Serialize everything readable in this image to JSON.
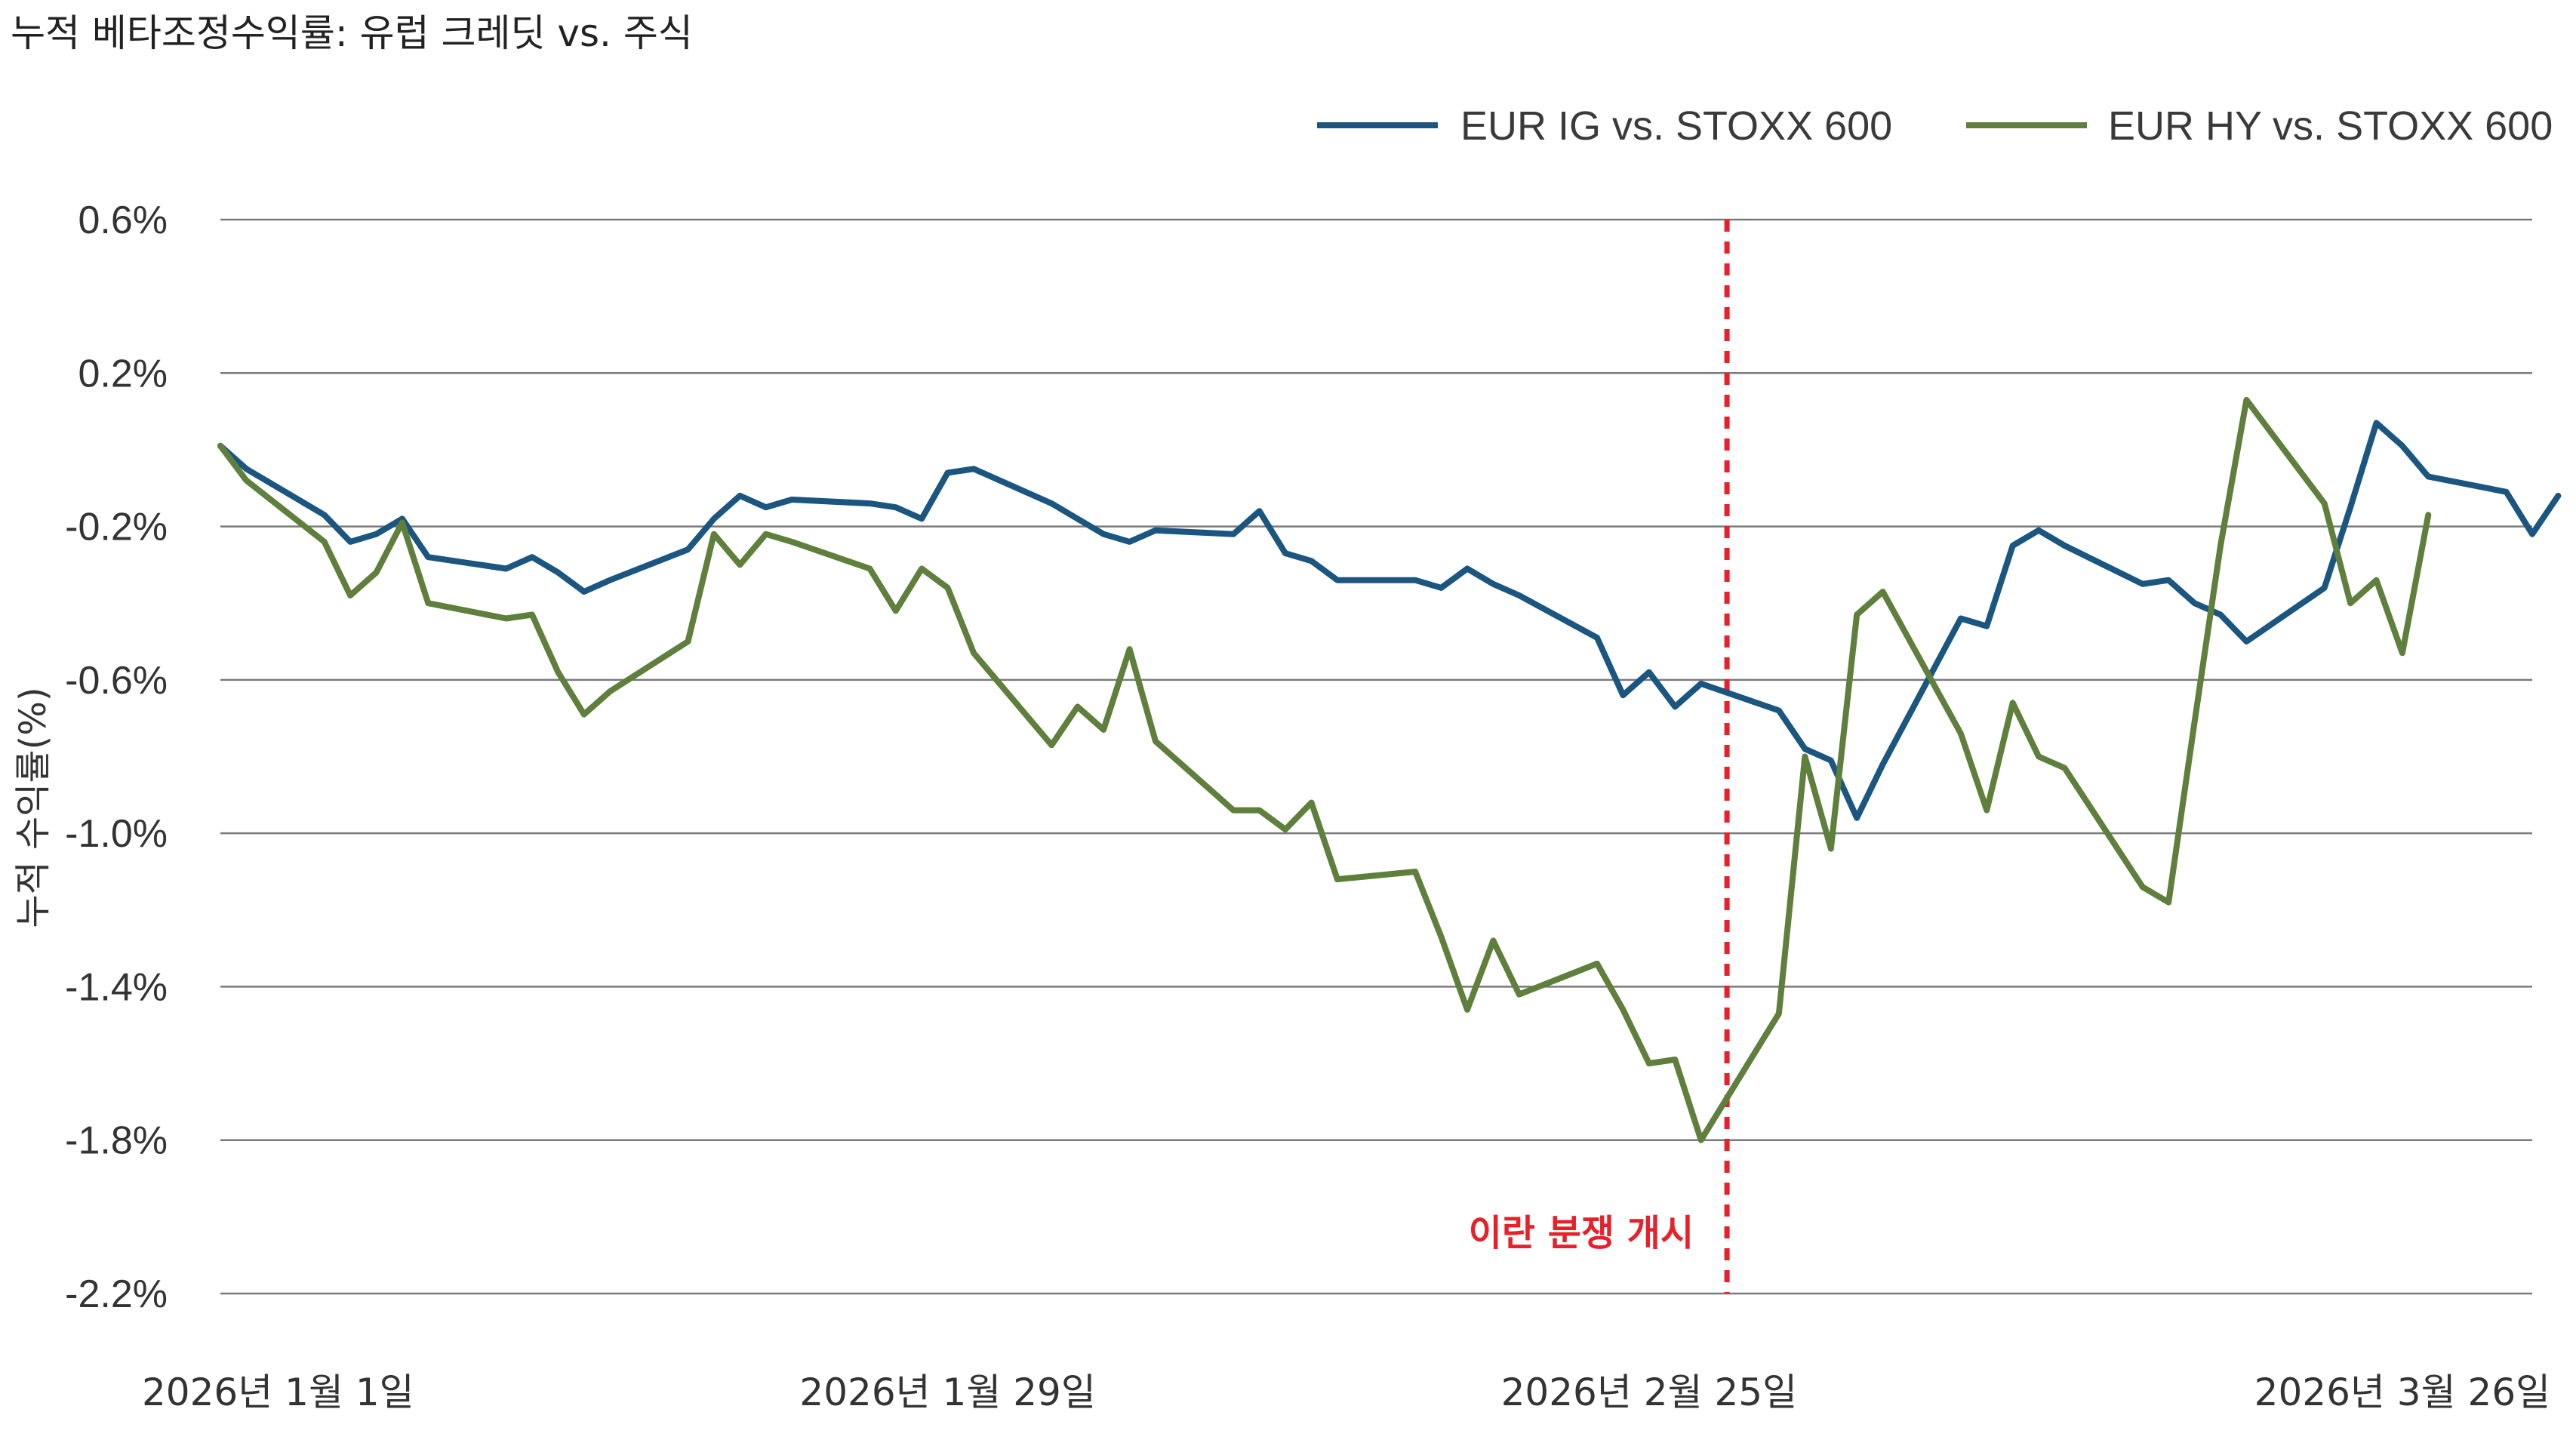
{
  "title": "누적 베타조정수익률: 유럽 크레딧 vs. 주식",
  "chart_data": {
    "type": "line",
    "title": "누적 베타조정수익률: 유럽 크레딧 vs. 주식",
    "xlabel": "",
    "ylabel": "누적 수익률(%)",
    "ylim": [
      -2.2,
      0.6
    ],
    "yticks": [
      0.6,
      0.2,
      -0.2,
      -0.6,
      -1.0,
      -1.4,
      -1.8,
      -2.2
    ],
    "ytick_labels": [
      "0.6%",
      "0.2%",
      "-0.2%",
      "-0.6%",
      "-1.0%",
      "-1.4%",
      "-1.8%",
      "-2.2%"
    ],
    "x_range": [
      "2026-01-01",
      "2026-03-31"
    ],
    "xticks": [
      {
        "date": "2026-01-01",
        "label": "2026년 1월 1일"
      },
      {
        "date": "2026-01-29",
        "label": "2026년 1월 29일"
      },
      {
        "date": "2026-02-25",
        "label": "2026년 2월 25일"
      },
      {
        "date": "2026-03-26",
        "label": "2026년 3월 26일"
      }
    ],
    "grid": true,
    "legend_position": "top-right",
    "annotations": [
      {
        "date": "2026-02-28",
        "label": "이란 분쟁 개시",
        "color": "#e8202a",
        "style": "dashed-vertical"
      }
    ],
    "series": [
      {
        "name": "EUR IG vs. STOXX 600",
        "color": "#1b5680",
        "points": [
          [
            "2026-01-01",
            0.01
          ],
          [
            "2026-01-02",
            -0.05
          ],
          [
            "2026-01-05",
            -0.17
          ],
          [
            "2026-01-06",
            -0.24
          ],
          [
            "2026-01-07",
            -0.22
          ],
          [
            "2026-01-08",
            -0.18
          ],
          [
            "2026-01-09",
            -0.28
          ],
          [
            "2026-01-12",
            -0.31
          ],
          [
            "2026-01-13",
            -0.28
          ],
          [
            "2026-01-14",
            -0.32
          ],
          [
            "2026-01-15",
            -0.37
          ],
          [
            "2026-01-16",
            -0.34
          ],
          [
            "2026-01-19",
            -0.26
          ],
          [
            "2026-01-20",
            -0.18
          ],
          [
            "2026-01-21",
            -0.12
          ],
          [
            "2026-01-22",
            -0.15
          ],
          [
            "2026-01-23",
            -0.13
          ],
          [
            "2026-01-26",
            -0.14
          ],
          [
            "2026-01-27",
            -0.15
          ],
          [
            "2026-01-28",
            -0.18
          ],
          [
            "2026-01-29",
            -0.06
          ],
          [
            "2026-01-30",
            -0.05
          ],
          [
            "2026-02-02",
            -0.14
          ],
          [
            "2026-02-03",
            -0.18
          ],
          [
            "2026-02-04",
            -0.22
          ],
          [
            "2026-02-05",
            -0.24
          ],
          [
            "2026-02-06",
            -0.21
          ],
          [
            "2026-02-09",
            -0.22
          ],
          [
            "2026-02-10",
            -0.16
          ],
          [
            "2026-02-11",
            -0.27
          ],
          [
            "2026-02-12",
            -0.29
          ],
          [
            "2026-02-13",
            -0.34
          ],
          [
            "2026-02-16",
            -0.34
          ],
          [
            "2026-02-17",
            -0.36
          ],
          [
            "2026-02-18",
            -0.31
          ],
          [
            "2026-02-19",
            -0.35
          ],
          [
            "2026-02-20",
            -0.38
          ],
          [
            "2026-02-23",
            -0.49
          ],
          [
            "2026-02-24",
            -0.64
          ],
          [
            "2026-02-25",
            -0.58
          ],
          [
            "2026-02-26",
            -0.67
          ],
          [
            "2026-02-27",
            -0.61
          ],
          [
            "2026-03-02",
            -0.68
          ],
          [
            "2026-03-03",
            -0.78
          ],
          [
            "2026-03-04",
            -0.81
          ],
          [
            "2026-03-05",
            -0.96
          ],
          [
            "2026-03-06",
            -0.82
          ],
          [
            "2026-03-09",
            -0.44
          ],
          [
            "2026-03-10",
            -0.46
          ],
          [
            "2026-03-11",
            -0.25
          ],
          [
            "2026-03-12",
            -0.21
          ],
          [
            "2026-03-13",
            -0.25
          ],
          [
            "2026-03-16",
            -0.35
          ],
          [
            "2026-03-17",
            -0.34
          ],
          [
            "2026-03-18",
            -0.4
          ],
          [
            "2026-03-19",
            -0.43
          ],
          [
            "2026-03-20",
            -0.5
          ],
          [
            "2026-03-23",
            -0.36
          ],
          [
            "2026-03-24",
            -0.15
          ],
          [
            "2026-03-25",
            0.07
          ],
          [
            "2026-03-26",
            0.01
          ],
          [
            "2026-03-27",
            -0.07
          ],
          [
            "2026-03-30",
            -0.11
          ],
          [
            "2026-03-31",
            -0.22
          ],
          [
            "2026-04-01",
            -0.12
          ]
        ]
      },
      {
        "name": "EUR HY vs. STOXX 600",
        "color": "#5f7f3c",
        "points": [
          [
            "2026-01-01",
            0.01
          ],
          [
            "2026-01-02",
            -0.08
          ],
          [
            "2026-01-05",
            -0.24
          ],
          [
            "2026-01-06",
            -0.38
          ],
          [
            "2026-01-07",
            -0.32
          ],
          [
            "2026-01-08",
            -0.19
          ],
          [
            "2026-01-09",
            -0.4
          ],
          [
            "2026-01-12",
            -0.44
          ],
          [
            "2026-01-13",
            -0.43
          ],
          [
            "2026-01-14",
            -0.58
          ],
          [
            "2026-01-15",
            -0.69
          ],
          [
            "2026-01-16",
            -0.63
          ],
          [
            "2026-01-19",
            -0.5
          ],
          [
            "2026-01-20",
            -0.22
          ],
          [
            "2026-01-21",
            -0.3
          ],
          [
            "2026-01-22",
            -0.22
          ],
          [
            "2026-01-23",
            -0.24
          ],
          [
            "2026-01-26",
            -0.31
          ],
          [
            "2026-01-27",
            -0.42
          ],
          [
            "2026-01-28",
            -0.31
          ],
          [
            "2026-01-29",
            -0.36
          ],
          [
            "2026-01-30",
            -0.53
          ],
          [
            "2026-02-02",
            -0.77
          ],
          [
            "2026-02-03",
            -0.67
          ],
          [
            "2026-02-04",
            -0.73
          ],
          [
            "2026-02-05",
            -0.52
          ],
          [
            "2026-02-06",
            -0.76
          ],
          [
            "2026-02-09",
            -0.94
          ],
          [
            "2026-02-10",
            -0.94
          ],
          [
            "2026-02-11",
            -0.99
          ],
          [
            "2026-02-12",
            -0.92
          ],
          [
            "2026-02-13",
            -1.12
          ],
          [
            "2026-02-16",
            -1.1
          ],
          [
            "2026-02-17",
            -1.27
          ],
          [
            "2026-02-18",
            -1.46
          ],
          [
            "2026-02-19",
            -1.28
          ],
          [
            "2026-02-20",
            -1.42
          ],
          [
            "2026-02-23",
            -1.34
          ],
          [
            "2026-02-24",
            -1.46
          ],
          [
            "2026-02-25",
            -1.6
          ],
          [
            "2026-02-26",
            -1.59
          ],
          [
            "2026-02-27",
            -1.8
          ],
          [
            "2026-03-02",
            -1.47
          ],
          [
            "2026-03-03",
            -0.8
          ],
          [
            "2026-03-04",
            -1.04
          ],
          [
            "2026-03-05",
            -0.43
          ],
          [
            "2026-03-06",
            -0.37
          ],
          [
            "2026-03-09",
            -0.74
          ],
          [
            "2026-03-10",
            -0.94
          ],
          [
            "2026-03-11",
            -0.66
          ],
          [
            "2026-03-12",
            -0.8
          ],
          [
            "2026-03-13",
            -0.83
          ],
          [
            "2026-03-16",
            -1.14
          ],
          [
            "2026-03-17",
            -1.18
          ],
          [
            "2026-03-18",
            -0.71
          ],
          [
            "2026-03-19",
            -0.25
          ],
          [
            "2026-03-20",
            0.13
          ],
          [
            "2026-03-23",
            -0.14
          ],
          [
            "2026-03-24",
            -0.4
          ],
          [
            "2026-03-25",
            -0.34
          ],
          [
            "2026-03-26",
            -0.53
          ],
          [
            "2026-03-27",
            -0.17
          ]
        ]
      }
    ]
  }
}
